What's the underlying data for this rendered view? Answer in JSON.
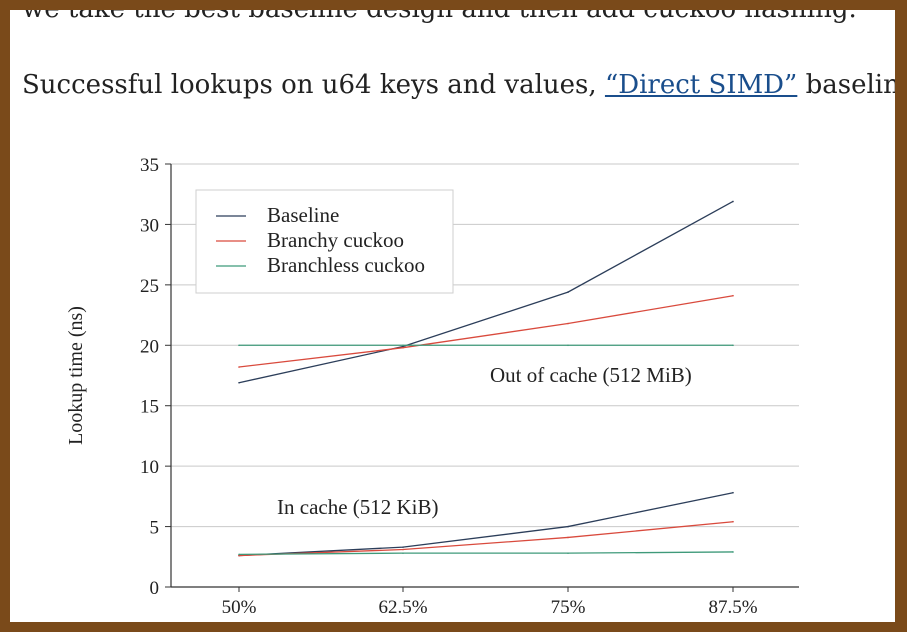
{
  "page": {
    "intro_cut": "we take the best baseline design and then add cuckoo hashing.",
    "lead_before": "Successful lookups on u64 keys and values, ",
    "lead_link": "“Direct SIMD”",
    "lead_after": " baseline:"
  },
  "chart_data": {
    "type": "line",
    "x": [
      "50%",
      "62.5%",
      "75%",
      "87.5%"
    ],
    "ylabel": "Lookup time (ns)",
    "xlabel": "",
    "ylim": [
      0,
      35
    ],
    "yticks": [
      0,
      5,
      10,
      15,
      20,
      25,
      30,
      35
    ],
    "grid": true,
    "legend": {
      "placement": "top-left",
      "entries": [
        {
          "name": "Baseline",
          "color": "#2c3e5a"
        },
        {
          "name": "Branchy cuckoo",
          "color": "#d94a3d"
        },
        {
          "name": "Branchless cuckoo",
          "color": "#3f9a7a"
        }
      ]
    },
    "annotations": [
      {
        "text": "Out of cache (512 MiB)",
        "x": "75%",
        "y": 17.7
      },
      {
        "text": "In cache (512 KiB)",
        "x": "62.5%",
        "y": 6.6
      }
    ],
    "groups": [
      {
        "label": "Out of cache (512 MiB)",
        "series": [
          {
            "name": "Baseline",
            "color": "#2c3e5a",
            "values": [
              16.9,
              19.9,
              24.4,
              31.9
            ]
          },
          {
            "name": "Branchy cuckoo",
            "color": "#d94a3d",
            "values": [
              18.2,
              19.8,
              21.8,
              24.1
            ]
          },
          {
            "name": "Branchless cuckoo",
            "color": "#3f9a7a",
            "values": [
              20.0,
              20.0,
              20.0,
              20.0
            ]
          }
        ]
      },
      {
        "label": "In cache (512 KiB)",
        "series": [
          {
            "name": "Baseline",
            "color": "#2c3e5a",
            "values": [
              2.6,
              3.3,
              5.0,
              7.8
            ]
          },
          {
            "name": "Branchy cuckoo",
            "color": "#d94a3d",
            "values": [
              2.6,
              3.1,
              4.1,
              5.4
            ]
          },
          {
            "name": "Branchless cuckoo",
            "color": "#3f9a7a",
            "values": [
              2.7,
              2.8,
              2.8,
              2.9
            ]
          }
        ]
      }
    ]
  }
}
